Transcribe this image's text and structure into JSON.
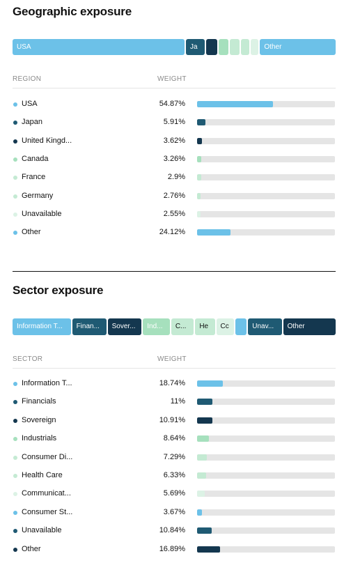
{
  "colors": {
    "light_blue": "#6cc1e8",
    "teal": "#1f5a73",
    "navy": "#14374f",
    "green": "#a6e0bd",
    "mint": "#c4ead3",
    "pale": "#dcf2e5",
    "track": "#e5e5e5"
  },
  "geo": {
    "title": "Geographic exposure",
    "header_col1": "REGION",
    "header_col2": "WEIGHT",
    "bar_segments": [
      {
        "label": "USA",
        "weight": 54.87,
        "color": "#6cc1e8",
        "text_color": "#ffffff"
      },
      {
        "label": "Ja",
        "weight": 5.91,
        "color": "#1f5a73",
        "text_color": "#ffffff"
      },
      {
        "label": "",
        "weight": 3.62,
        "color": "#14374f",
        "text_color": "#ffffff"
      },
      {
        "label": "",
        "weight": 3.26,
        "color": "#a6e0bd",
        "text_color": "#ffffff"
      },
      {
        "label": "",
        "weight": 2.9,
        "color": "#c4ead3",
        "text_color": "#ffffff"
      },
      {
        "label": "",
        "weight": 2.76,
        "color": "#c4ead3",
        "text_color": "#ffffff"
      },
      {
        "label": "",
        "weight": 2.55,
        "color": "#dcf2e5",
        "text_color": "#ffffff"
      },
      {
        "label": "Other",
        "weight": 24.12,
        "color": "#6cc1e8",
        "text_color": "#ffffff"
      }
    ],
    "rows": [
      {
        "label": "USA",
        "value": "54.87%",
        "pct": 54.87,
        "color": "#6cc1e8"
      },
      {
        "label": "Japan",
        "value": "5.91%",
        "pct": 5.91,
        "color": "#1f5a73"
      },
      {
        "label": "United Kingd...",
        "value": "3.62%",
        "pct": 3.62,
        "color": "#14374f"
      },
      {
        "label": "Canada",
        "value": "3.26%",
        "pct": 3.26,
        "color": "#a6e0bd"
      },
      {
        "label": "France",
        "value": "2.9%",
        "pct": 2.9,
        "color": "#c4ead3"
      },
      {
        "label": "Germany",
        "value": "2.76%",
        "pct": 2.76,
        "color": "#c4ead3"
      },
      {
        "label": "Unavailable",
        "value": "2.55%",
        "pct": 2.55,
        "color": "#dcf2e5"
      },
      {
        "label": "Other",
        "value": "24.12%",
        "pct": 24.12,
        "color": "#6cc1e8"
      }
    ]
  },
  "sector": {
    "title": "Sector exposure",
    "header_col1": "SECTOR",
    "header_col2": "WEIGHT",
    "bar_segments": [
      {
        "label": "Information T...",
        "weight": 18.74,
        "color": "#6cc1e8",
        "text_color": "#ffffff"
      },
      {
        "label": "Finan...",
        "weight": 11,
        "color": "#1f5a73",
        "text_color": "#ffffff"
      },
      {
        "label": "Sover...",
        "weight": 10.91,
        "color": "#14374f",
        "text_color": "#ffffff"
      },
      {
        "label": "Ind...",
        "weight": 8.64,
        "color": "#a6e0bd",
        "text_color": "#ffffff"
      },
      {
        "label": "C...",
        "weight": 7.29,
        "color": "#c4ead3",
        "text_color": "#111111"
      },
      {
        "label": "He",
        "weight": 6.33,
        "color": "#c4ead3",
        "text_color": "#111111"
      },
      {
        "label": "Cc",
        "weight": 5.69,
        "color": "#dcf2e5",
        "text_color": "#111111"
      },
      {
        "label": "",
        "weight": 3.67,
        "color": "#6cc1e8",
        "text_color": "#ffffff"
      },
      {
        "label": "Unav...",
        "weight": 10.84,
        "color": "#1f5a73",
        "text_color": "#ffffff"
      },
      {
        "label": "Other",
        "weight": 16.89,
        "color": "#14374f",
        "text_color": "#ffffff"
      }
    ],
    "rows": [
      {
        "label": "Information T...",
        "value": "18.74%",
        "pct": 18.74,
        "color": "#6cc1e8"
      },
      {
        "label": "Financials",
        "value": "11%",
        "pct": 11,
        "color": "#1f5a73"
      },
      {
        "label": "Sovereign",
        "value": "10.91%",
        "pct": 10.91,
        "color": "#14374f"
      },
      {
        "label": "Industrials",
        "value": "8.64%",
        "pct": 8.64,
        "color": "#a6e0bd"
      },
      {
        "label": "Consumer Di...",
        "value": "7.29%",
        "pct": 7.29,
        "color": "#c4ead3"
      },
      {
        "label": "Health Care",
        "value": "6.33%",
        "pct": 6.33,
        "color": "#c4ead3"
      },
      {
        "label": "Communicat...",
        "value": "5.69%",
        "pct": 5.69,
        "color": "#dcf2e5"
      },
      {
        "label": "Consumer St...",
        "value": "3.67%",
        "pct": 3.67,
        "color": "#6cc1e8"
      },
      {
        "label": "Unavailable",
        "value": "10.84%",
        "pct": 10.84,
        "color": "#1f5a73"
      },
      {
        "label": "Other",
        "value": "16.89%",
        "pct": 16.89,
        "color": "#14374f"
      }
    ]
  }
}
